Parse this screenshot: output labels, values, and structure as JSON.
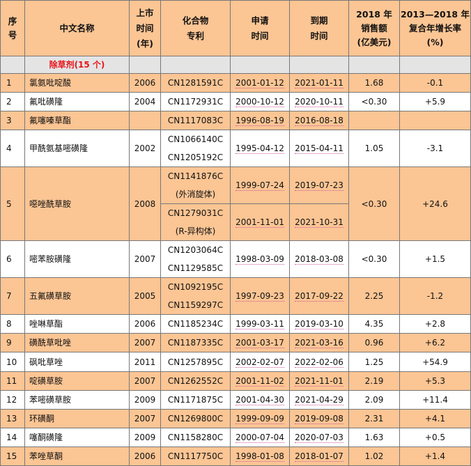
{
  "colors": {
    "header_bg": "#fbc594",
    "subheader_bg": "#e4e4e4",
    "category_text": "#e8141a"
  },
  "headers": [
    "序号",
    "中文名称",
    "上市时间(年)",
    "化合物专利",
    "申请时间",
    "到期时间",
    "2018年销售额(亿美元)",
    "2013—2018年复合年增长率(%)"
  ],
  "header_lines": [
    [
      "序",
      "号"
    ],
    [
      "中文名称"
    ],
    [
      "上市",
      "时间",
      "(年)"
    ],
    [
      "化合物",
      "专利"
    ],
    [
      "申请",
      "时间"
    ],
    [
      "到期",
      "时间"
    ],
    [
      "2018 年",
      "销售额",
      "(亿美元)"
    ],
    [
      "2013—2018 年",
      "复合年增长率",
      "(%)"
    ]
  ],
  "category": "除草剂(15 个)",
  "rows": [
    {
      "no": "1",
      "name": "氯氨吡啶酸",
      "year": "2006",
      "patents": [
        {
          "ids": [
            "CN1281591C"
          ],
          "apply": "2001-01-12",
          "expire": "2021-01-11"
        }
      ],
      "sales": "1.68",
      "cagr": "-0.1"
    },
    {
      "no": "2",
      "name": "氟吡磺隆",
      "year": "2004",
      "patents": [
        {
          "ids": [
            "CN1172931C"
          ],
          "apply": "2000-10-12",
          "expire": "2020-10-11"
        }
      ],
      "sales": "<0.30",
      "cagr": "+5.9"
    },
    {
      "no": "3",
      "name": "氟噻嗪草酯",
      "year": "",
      "patents": [
        {
          "ids": [
            "CN1117083C"
          ],
          "apply": "1996-08-19",
          "expire": "2016-08-18"
        }
      ],
      "sales": "",
      "cagr": ""
    },
    {
      "no": "4",
      "name": "甲酰氨基嘧磺隆",
      "year": "2002",
      "patents": [
        {
          "ids": [
            "CN1066140C",
            "CN1205192C"
          ],
          "apply": "1995-04-12",
          "expire": "2015-04-11"
        }
      ],
      "sales": "1.05",
      "cagr": "-3.1"
    },
    {
      "no": "5",
      "name": "噁唑酰草胺",
      "year": "2008",
      "patents": [
        {
          "ids": [
            "CN1141876C",
            "(外消旋体)"
          ],
          "apply": "1999-07-24",
          "expire": "2019-07-23"
        },
        {
          "ids": [
            "CN1279031C",
            "(R-异构体)"
          ],
          "apply": "2001-11-01",
          "expire": "2021-10-31"
        }
      ],
      "sales": "<0.30",
      "cagr": "+24.6"
    },
    {
      "no": "6",
      "name": "嘧苯胺磺隆",
      "year": "2007",
      "patents": [
        {
          "ids": [
            "CN1203064C",
            "CN1129585C"
          ],
          "apply": "1998-03-09",
          "expire": "2018-03-08"
        }
      ],
      "sales": "<0.30",
      "cagr": "+1.5"
    },
    {
      "no": "7",
      "name": "五氟磺草胺",
      "year": "2005",
      "patents": [
        {
          "ids": [
            "CN1092195C",
            "CN1159297C"
          ],
          "apply": "1997-09-23",
          "expire": "2017-09-22"
        }
      ],
      "sales": "2.25",
      "cagr": "-1.2"
    },
    {
      "no": "8",
      "name": "唑啉草酯",
      "year": "2006",
      "patents": [
        {
          "ids": [
            "CN1185234C"
          ],
          "apply": "1999-03-11",
          "expire": "2019-03-10"
        }
      ],
      "sales": "4.35",
      "cagr": "+2.8"
    },
    {
      "no": "9",
      "name": "磺酰草吡唑",
      "year": "2007",
      "patents": [
        {
          "ids": [
            "CN1187335C"
          ],
          "apply": "2001-03-17",
          "expire": "2021-03-16"
        }
      ],
      "sales": "0.96",
      "cagr": "+6.2"
    },
    {
      "no": "10",
      "name": "砜吡草唑",
      "year": "2011",
      "patents": [
        {
          "ids": [
            "CN1257895C"
          ],
          "apply": "2002-02-07",
          "expire": "2022-02-06"
        }
      ],
      "sales": "1.25",
      "cagr": "+54.9"
    },
    {
      "no": "11",
      "name": "啶磺草胺",
      "year": "2007",
      "patents": [
        {
          "ids": [
            "CN1262552C"
          ],
          "apply": "2001-11-02",
          "expire": "2021-11-01"
        }
      ],
      "sales": "2.19",
      "cagr": "+5.3"
    },
    {
      "no": "12",
      "name": "苯嘧磺草胺",
      "year": "2009",
      "patents": [
        {
          "ids": [
            "CN1171875C"
          ],
          "apply": "2001-04-30",
          "expire": "2021-04-29"
        }
      ],
      "sales": "2.09",
      "cagr": "+11.4"
    },
    {
      "no": "13",
      "name": "环磺酮",
      "year": "2007",
      "patents": [
        {
          "ids": [
            "CN1269800C"
          ],
          "apply": "1999-09-09",
          "expire": "2019-09-08"
        }
      ],
      "sales": "2.31",
      "cagr": "+4.1"
    },
    {
      "no": "14",
      "name": "噻酮磺隆",
      "year": "2009",
      "patents": [
        {
          "ids": [
            "CN1158280C"
          ],
          "apply": "2000-07-04",
          "expire": "2020-07-03"
        }
      ],
      "sales": "1.63",
      "cagr": "+0.5"
    },
    {
      "no": "15",
      "name": "苯唑草酮",
      "year": "2006",
      "patents": [
        {
          "ids": [
            "CN1117750C"
          ],
          "apply": "1998-01-08",
          "expire": "2018-01-07"
        }
      ],
      "sales": "1.02",
      "cagr": "+1.4"
    }
  ]
}
